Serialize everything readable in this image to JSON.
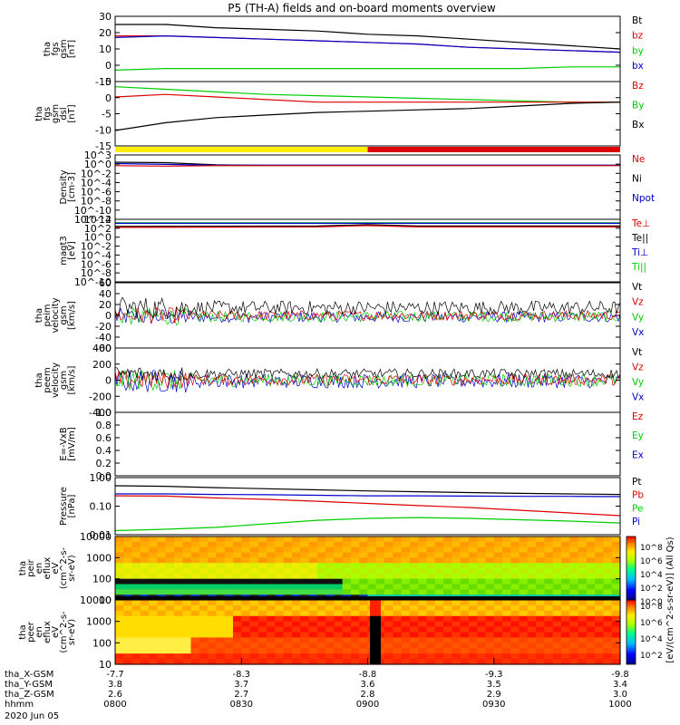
{
  "title": "P5 (TH-A) fields and on-board moments overview",
  "chart_data": [
    {
      "id": "fgs_mag",
      "type": "line",
      "ylabel": [
        "tha",
        "fgs",
        "gsm",
        "[nT]"
      ],
      "yticks": [
        "30",
        "20",
        "10",
        "0",
        "-10"
      ],
      "ylim": [
        -10,
        30
      ],
      "legend": [
        "Bt",
        "bz",
        "by",
        "bx"
      ],
      "legend_colors": [
        "#000000",
        "#dd0000",
        "#00cc00",
        "#0000cc"
      ],
      "series": [
        {
          "name": "Bt",
          "color": "#000000",
          "x": [
            0,
            0.1,
            0.2,
            0.3,
            0.4,
            0.5,
            0.6,
            0.7,
            0.8,
            0.9,
            1
          ],
          "y": [
            25,
            25,
            23,
            22,
            21,
            19,
            18,
            16,
            14,
            12,
            10
          ]
        },
        {
          "name": "bz",
          "color": "#dd0000",
          "x": [
            0,
            0.1,
            0.2,
            0.3,
            0.4,
            0.5,
            0.6,
            0.7,
            0.8,
            0.9,
            1
          ],
          "y": [
            18,
            18,
            17,
            16,
            15,
            14,
            13,
            11,
            10,
            9,
            8
          ]
        },
        {
          "name": "bx",
          "color": "#0000cc",
          "x": [
            0,
            0.1,
            0.2,
            0.3,
            0.4,
            0.5,
            0.6,
            0.7,
            0.8,
            0.9,
            1
          ],
          "y": [
            17,
            18,
            17,
            16,
            15,
            14,
            13,
            11,
            10,
            9,
            8
          ]
        },
        {
          "name": "by",
          "color": "#00cc00",
          "x": [
            0,
            0.1,
            0.2,
            0.3,
            0.4,
            0.5,
            0.6,
            0.7,
            0.8,
            0.9,
            1
          ],
          "y": [
            -3,
            -2,
            -2,
            -2,
            -2,
            -2,
            -2,
            -2,
            -2,
            -1,
            -1
          ]
        }
      ]
    },
    {
      "id": "fgs_dsl",
      "type": "line",
      "ylabel": [
        "tha",
        "fgs",
        "gsm",
        "dsl",
        "[nT]"
      ],
      "yticks": [
        "5",
        "0",
        "-5",
        "-10",
        "-15"
      ],
      "ylim": [
        -18,
        7
      ],
      "legend": [
        "Bz",
        "By",
        "Bx"
      ],
      "legend_colors": [
        "#dd0000",
        "#00cc00",
        "#000000"
      ],
      "series": [
        {
          "name": "By",
          "color": "#00cc00",
          "x": [
            0,
            0.1,
            0.2,
            0.3,
            0.4,
            0.5,
            0.6,
            0.7,
            0.8,
            0.9,
            1
          ],
          "y": [
            5,
            4,
            3,
            2,
            1.5,
            1,
            0.5,
            0,
            -0.5,
            -1,
            -1
          ]
        },
        {
          "name": "Bz",
          "color": "#dd0000",
          "x": [
            0,
            0.1,
            0.2,
            0.3,
            0.4,
            0.5,
            0.6,
            0.7,
            0.8,
            0.9,
            1
          ],
          "y": [
            1,
            2,
            1,
            0,
            -1,
            -1,
            -1,
            -1,
            -1,
            -1,
            -1
          ]
        },
        {
          "name": "Bx",
          "color": "#000000",
          "x": [
            0,
            0.1,
            0.2,
            0.3,
            0.4,
            0.5,
            0.6,
            0.7,
            0.8,
            0.9,
            1
          ],
          "y": [
            -12,
            -9,
            -7,
            -6,
            -5,
            -4.5,
            -4,
            -3.5,
            -2.5,
            -1.5,
            -1
          ]
        }
      ]
    },
    {
      "id": "density",
      "type": "line",
      "ylabel": [
        "Density",
        "[cm-3]"
      ],
      "yticks": [
        "10^3",
        "10^0",
        "10^-2",
        "10^-4",
        "10^-6",
        "10^-8",
        "10^-10",
        "10^-12"
      ],
      "ylim": [
        -12,
        3
      ],
      "log": true,
      "legend": [
        "Ne",
        "Ni",
        "Npot"
      ],
      "legend_colors": [
        "#dd0000",
        "#000000",
        "#0000cc"
      ],
      "series": [
        {
          "name": "Ni",
          "color": "#000000",
          "x": [
            0,
            0.1,
            0.2,
            0.3,
            0.5,
            1
          ],
          "y": [
            1.3,
            1.2,
            0.7,
            0.6,
            0.6,
            0.6
          ]
        },
        {
          "name": "Npot",
          "color": "#0000cc",
          "x": [
            0,
            0.1,
            0.2,
            0.3,
            0.5,
            1
          ],
          "y": [
            1.0,
            0.8,
            0.6,
            0.6,
            0.6,
            0.6
          ]
        },
        {
          "name": "Ne",
          "color": "#dd0000",
          "x": [
            0,
            0.1,
            0.2,
            0.3,
            0.5,
            1
          ],
          "y": [
            0.5,
            0.4,
            0.5,
            0.5,
            0.5,
            0.5
          ]
        }
      ]
    },
    {
      "id": "temperature",
      "type": "line",
      "ylabel": [
        "magt3",
        "[eV]"
      ],
      "yticks": [
        "10^4",
        "10^2",
        "10^0",
        "10^-2",
        "10^-4",
        "10^-6",
        "10^-8",
        "10^-10"
      ],
      "ylim": [
        -10,
        4
      ],
      "log": true,
      "legend": [
        "Te⊥",
        "Te||",
        "Ti⊥",
        "Ti||"
      ],
      "legend_colors": [
        "#dd0000",
        "#000000",
        "#0000cc",
        "#00cc00"
      ],
      "series": [
        {
          "name": "Ti||",
          "color": "#00cc00",
          "x": [
            0,
            0.5,
            1
          ],
          "y": [
            3.2,
            3.2,
            3.2
          ]
        },
        {
          "name": "Ti⊥",
          "color": "#0000cc",
          "x": [
            0,
            0.5,
            1
          ],
          "y": [
            3.1,
            3.1,
            3.1
          ]
        },
        {
          "name": "Te||",
          "color": "#000000",
          "x": [
            0,
            0.4,
            0.5,
            0.6,
            1
          ],
          "y": [
            2.4,
            2.5,
            2.8,
            2.5,
            2.5
          ]
        },
        {
          "name": "Te⊥",
          "color": "#dd0000",
          "x": [
            0,
            0.4,
            0.5,
            0.6,
            1
          ],
          "y": [
            2.2,
            2.3,
            2.6,
            2.3,
            2.3
          ]
        }
      ]
    },
    {
      "id": "peim_velocity",
      "type": "line",
      "ylabel": [
        "tha",
        "peim",
        "velocity",
        "gsm",
        "[km/s]"
      ],
      "yticks": [
        "60",
        "40",
        "20",
        "0",
        "-20",
        "-40",
        "-60"
      ],
      "ylim": [
        -60,
        60
      ],
      "legend": [
        "Vt",
        "Vz",
        "Vy",
        "Vx"
      ],
      "legend_colors": [
        "#000000",
        "#dd0000",
        "#00cc00",
        "#0000cc"
      ],
      "noise": [
        {
          "name": "Vx",
          "color": "#0000cc",
          "base": -3,
          "amp": 10
        },
        {
          "name": "Vy",
          "color": "#00cc00",
          "base": -2,
          "amp": 10
        },
        {
          "name": "Vz",
          "color": "#dd0000",
          "base": 0,
          "amp": 9
        },
        {
          "name": "Vt",
          "color": "#000000",
          "base": 14,
          "amp": 13
        }
      ]
    },
    {
      "id": "peem_velocity",
      "type": "line",
      "ylabel": [
        "tha",
        "peem",
        "velocity",
        "gsm",
        "[km/s]"
      ],
      "yticks": [
        "400",
        "200",
        "0",
        "-200",
        "-400"
      ],
      "ylim": [
        -400,
        400
      ],
      "legend": [
        "Vt",
        "Vz",
        "Vy",
        "Vx"
      ],
      "legend_colors": [
        "#000000",
        "#dd0000",
        "#00cc00",
        "#0000cc"
      ],
      "noise": [
        {
          "name": "Vx",
          "color": "#0000cc",
          "base": -10,
          "amp": 90
        },
        {
          "name": "Vy",
          "color": "#00cc00",
          "base": 0,
          "amp": 80
        },
        {
          "name": "Vz",
          "color": "#dd0000",
          "base": 5,
          "amp": 70
        },
        {
          "name": "Vt",
          "color": "#000000",
          "base": 80,
          "amp": 60
        }
      ]
    },
    {
      "id": "efield",
      "type": "line",
      "ylabel": [
        "E=-VxB",
        "[mV/m]"
      ],
      "yticks": [
        "1.0",
        "0.8",
        "0.6",
        "0.4",
        "0.2",
        "0.0"
      ],
      "ylim": [
        0,
        1
      ],
      "legend": [
        "Ez",
        "Ey",
        "Ex"
      ],
      "legend_colors": [
        "#dd0000",
        "#00cc00",
        "#0000cc"
      ],
      "series": []
    },
    {
      "id": "pressure",
      "type": "line",
      "ylabel": [
        "Pressure",
        "[nPa]"
      ],
      "yticks": [
        "1.00",
        "0.10",
        "0.01"
      ],
      "ylim": [
        -2.05,
        0.05
      ],
      "log": true,
      "legend": [
        "Pt",
        "Pb",
        "Pe",
        "Pi"
      ],
      "legend_colors": [
        "#000000",
        "#dd0000",
        "#00cc00",
        "#0000cc"
      ],
      "series": [
        {
          "name": "Pt",
          "color": "#000000",
          "x": [
            0,
            0.1,
            0.2,
            0.3,
            0.4,
            0.5,
            0.6,
            0.7,
            0.8,
            0.9,
            1
          ],
          "y": [
            -0.25,
            -0.27,
            -0.32,
            -0.36,
            -0.4,
            -0.44,
            -0.47,
            -0.5,
            -0.53,
            -0.55,
            -0.57
          ]
        },
        {
          "name": "Pi",
          "color": "#0000cc",
          "x": [
            0,
            0.1,
            0.2,
            0.3,
            0.4,
            0.5,
            0.6,
            0.7,
            0.8,
            0.9,
            1
          ],
          "y": [
            -0.55,
            -0.55,
            -0.57,
            -0.58,
            -0.6,
            -0.62,
            -0.62,
            -0.63,
            -0.64,
            -0.64,
            -0.65
          ]
        },
        {
          "name": "Pb",
          "color": "#dd0000",
          "x": [
            0,
            0.1,
            0.2,
            0.3,
            0.4,
            0.5,
            0.6,
            0.7,
            0.8,
            0.9,
            1
          ],
          "y": [
            -0.62,
            -0.63,
            -0.7,
            -0.75,
            -0.82,
            -0.9,
            -0.98,
            -1.05,
            -1.15,
            -1.25,
            -1.35
          ]
        },
        {
          "name": "Pe",
          "color": "#00cc00",
          "x": [
            0,
            0.1,
            0.2,
            0.3,
            0.4,
            0.5,
            0.6,
            0.7,
            0.8,
            0.9,
            1
          ],
          "y": [
            -1.9,
            -1.85,
            -1.78,
            -1.65,
            -1.52,
            -1.45,
            -1.42,
            -1.45,
            -1.5,
            -1.55,
            -1.62
          ]
        }
      ]
    },
    {
      "id": "peir_spec",
      "type": "heatmap",
      "ylabel": [
        "tha",
        "peir",
        "en",
        "eflux",
        "eV",
        "(cm^2-s-",
        "sr-eV)"
      ],
      "yticks": [
        "10000",
        "1000",
        "100",
        "10"
      ]
    },
    {
      "id": "peer_spec",
      "type": "heatmap",
      "ylabel": [
        "tha",
        "peer",
        "en",
        "eflux",
        "eV",
        "(cm^2-s-",
        "sr-eV)"
      ],
      "yticks": [
        "10000",
        "1000",
        "100",
        "10"
      ]
    }
  ],
  "colorbar": {
    "label": "[eV/(cm^2-s-sr-eV)] (All Qs)",
    "ticks_top": [
      "10^8",
      "10^6",
      "10^4",
      "10^2",
      "10^0"
    ],
    "ticks_bottom": [
      "10^8",
      "10^6",
      "10^4",
      "10^2"
    ]
  },
  "state_bar": {
    "colors": [
      "#ffee00",
      "#dd0000"
    ],
    "split_fraction": 0.5
  },
  "x_axis": {
    "tick_fractions": [
      0,
      0.25,
      0.5,
      0.75,
      1
    ],
    "rows": [
      {
        "label": "tha_X-GSM",
        "values": [
          "-7.7",
          "-8.3",
          "-8.8",
          "-9.3",
          "-9.8"
        ]
      },
      {
        "label": "tha_Y-GSM",
        "values": [
          "3.8",
          "3.7",
          "3.6",
          "3.5",
          "3.4"
        ]
      },
      {
        "label": "tha_Z-GSM",
        "values": [
          "2.6",
          "2.7",
          "2.8",
          "2.9",
          "3.0"
        ]
      },
      {
        "label": "hhmm",
        "values": [
          "0800",
          "0830",
          "0900",
          "0930",
          "1000"
        ]
      }
    ],
    "date": "2020 Jun 05"
  }
}
